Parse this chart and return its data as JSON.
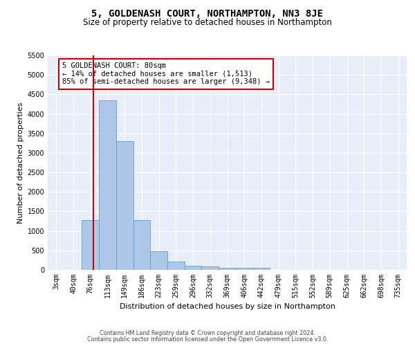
{
  "title": "5, GOLDENASH COURT, NORTHAMPTON, NN3 8JE",
  "subtitle": "Size of property relative to detached houses in Northampton",
  "xlabel": "Distribution of detached houses by size in Northampton",
  "ylabel": "Number of detached properties",
  "footer_line1": "Contains HM Land Registry data © Crown copyright and database right 2024.",
  "footer_line2": "Contains public sector information licensed under the Open Government Licence v3.0.",
  "bin_labels": [
    "3sqm",
    "40sqm",
    "76sqm",
    "113sqm",
    "149sqm",
    "186sqm",
    "223sqm",
    "259sqm",
    "296sqm",
    "332sqm",
    "369sqm",
    "406sqm",
    "442sqm",
    "479sqm",
    "515sqm",
    "552sqm",
    "589sqm",
    "625sqm",
    "662sqm",
    "698sqm",
    "735sqm"
  ],
  "bar_values": [
    0,
    0,
    1270,
    4350,
    3300,
    1270,
    480,
    220,
    100,
    80,
    55,
    55,
    55,
    0,
    0,
    0,
    0,
    0,
    0,
    0,
    0
  ],
  "bar_color": "#aec6e8",
  "bar_edge_color": "#5a9fd4",
  "background_color": "#e8eef8",
  "grid_color": "#ffffff",
  "ylim": [
    0,
    5500
  ],
  "yticks": [
    0,
    500,
    1000,
    1500,
    2000,
    2500,
    3000,
    3500,
    4000,
    4500,
    5000,
    5500
  ],
  "property_line_x": 2.18,
  "property_line_color": "#cc0000",
  "annotation_text": "5 GOLDENASH COURT: 80sqm\n← 14% of detached houses are smaller (1,513)\n85% of semi-detached houses are larger (9,348) →",
  "annotation_box_color": "#ffffff",
  "annotation_border_color": "#cc0000",
  "title_fontsize": 10,
  "subtitle_fontsize": 8.5,
  "xlabel_fontsize": 8,
  "ylabel_fontsize": 8,
  "tick_fontsize": 7,
  "annotation_fontsize": 7.5,
  "footer_fontsize": 5.8
}
